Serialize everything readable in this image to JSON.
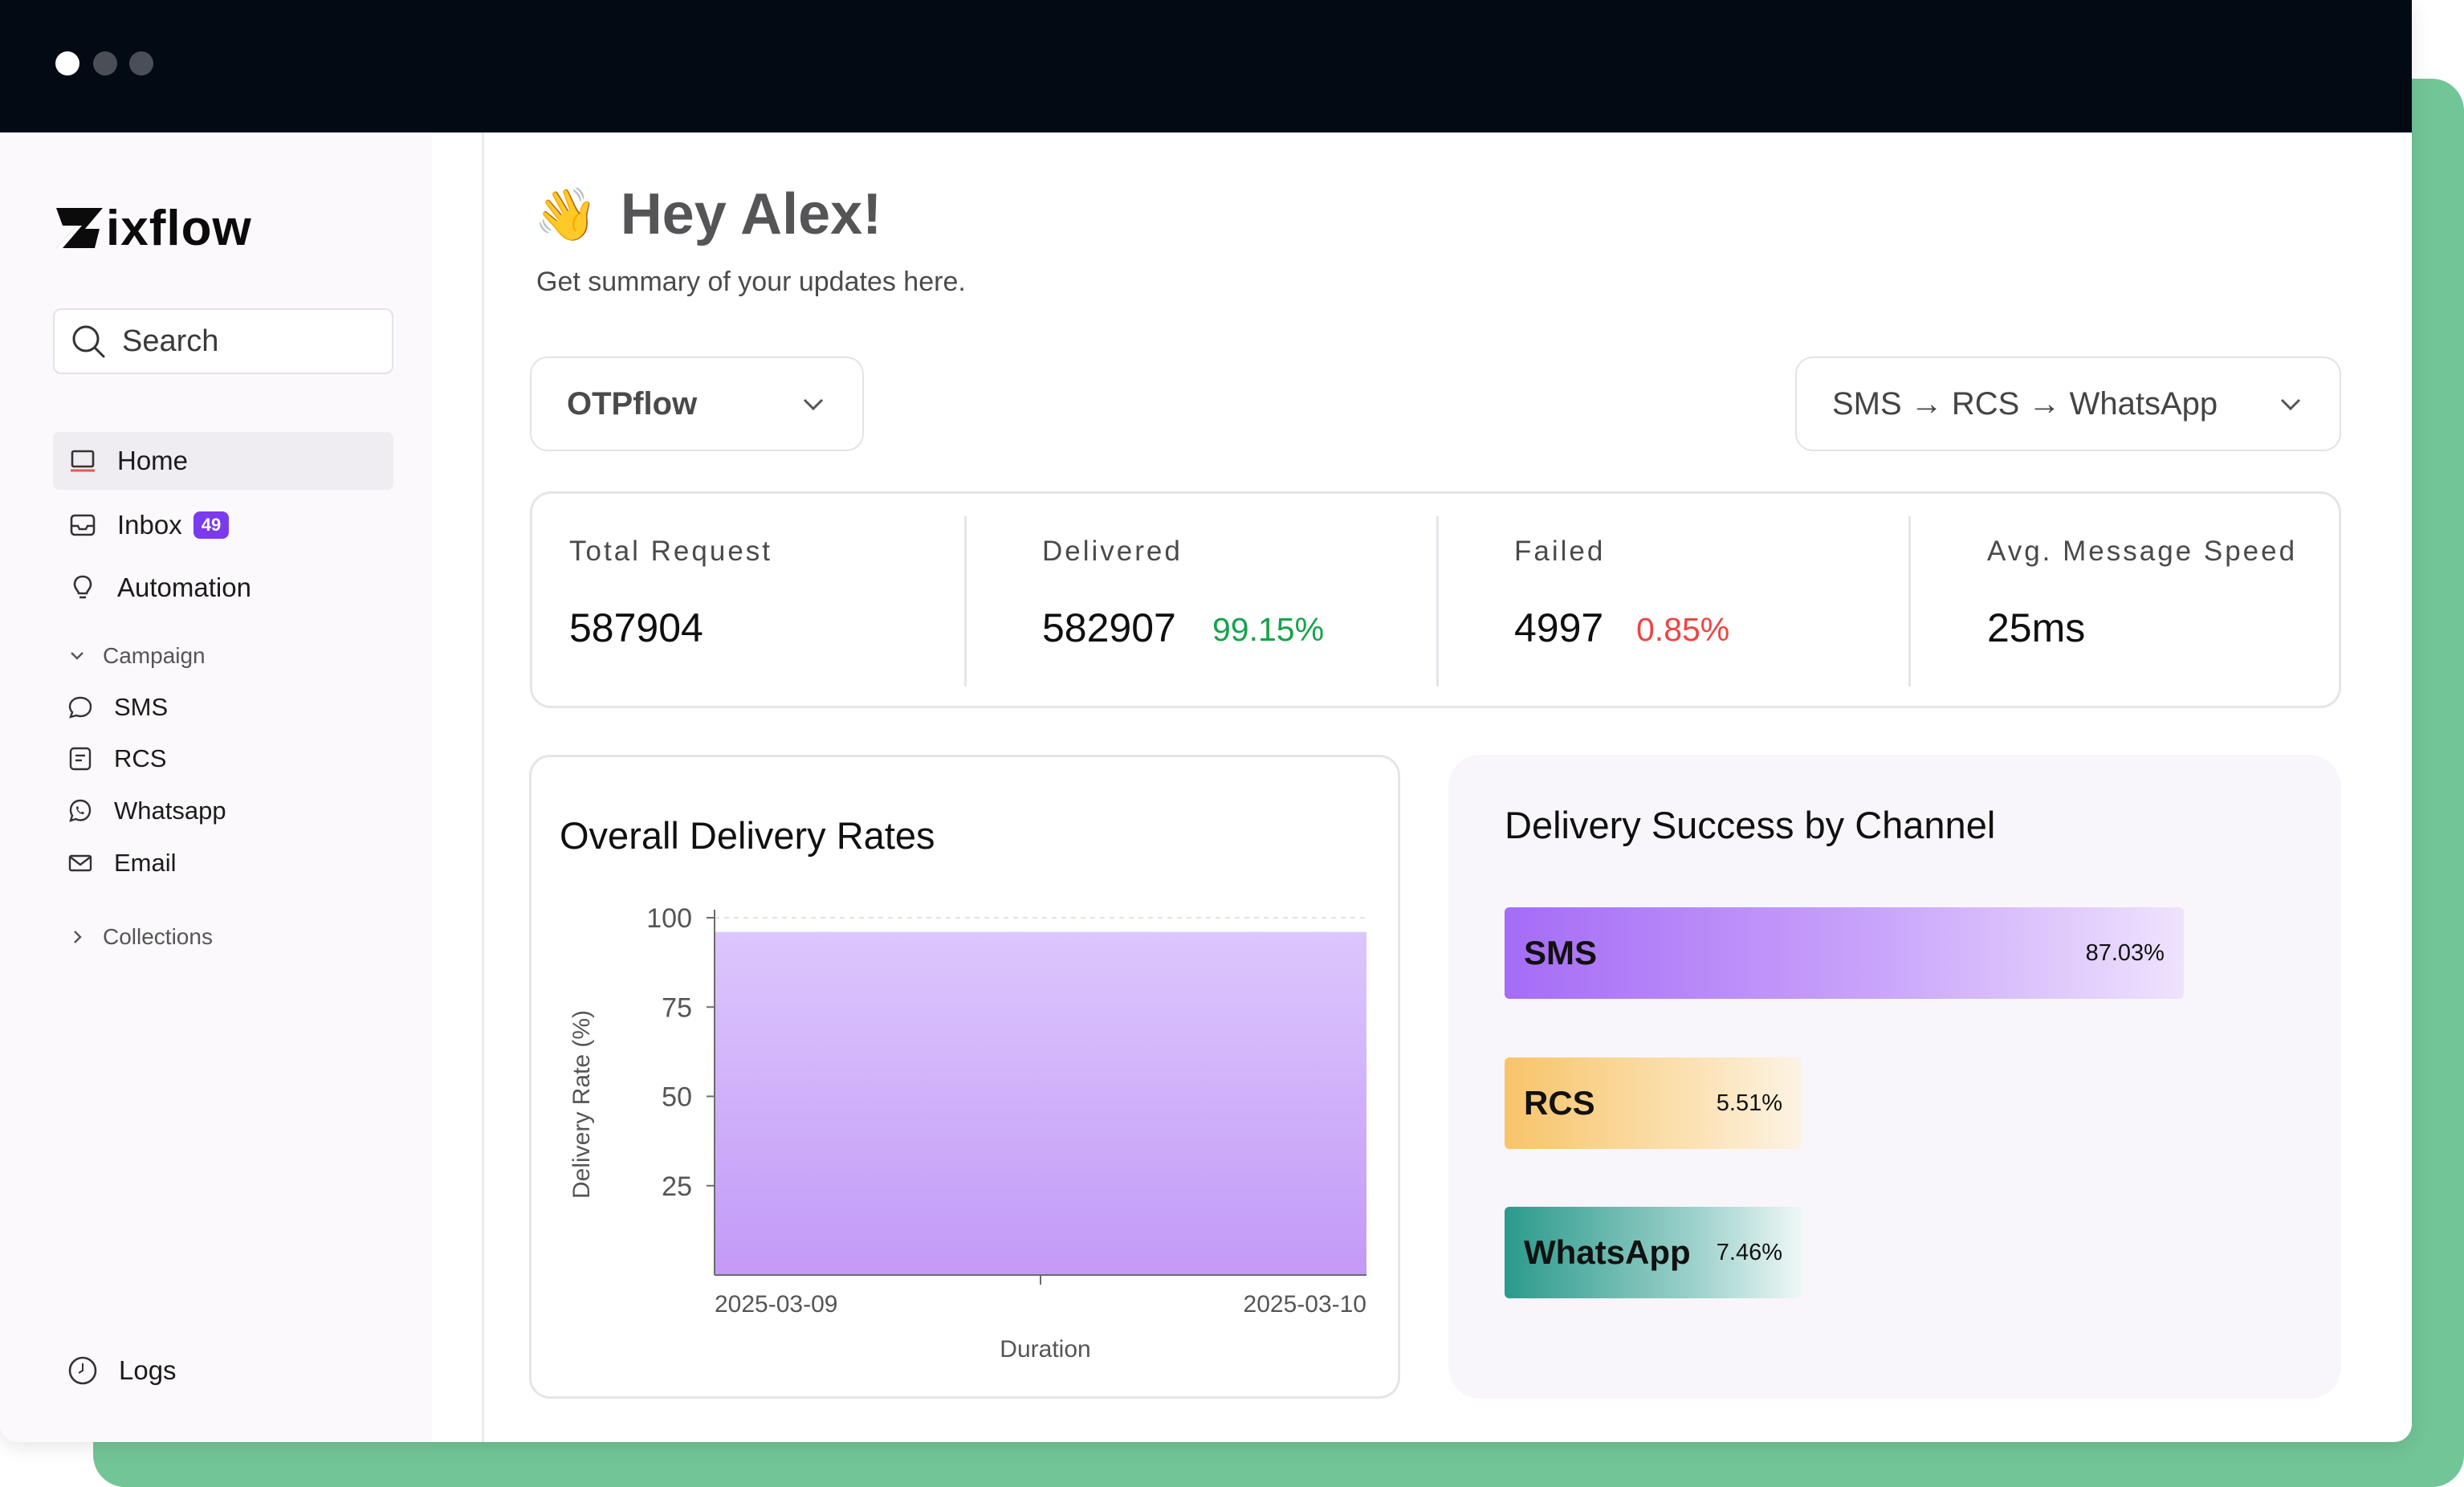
{
  "app": {
    "brand": "ixflow",
    "colors": {
      "accent": "#7c3aed",
      "backdrop": "#72c596",
      "titlebar": "#020a14"
    }
  },
  "sidebar": {
    "search_placeholder": "Search",
    "items": [
      {
        "label": "Home",
        "icon": "laptop-icon",
        "active": true
      },
      {
        "label": "Inbox",
        "icon": "inbox-icon",
        "badge": "49"
      },
      {
        "label": "Automation",
        "icon": "lightbulb-icon"
      }
    ],
    "campaign": {
      "label": "Campaign",
      "items": [
        {
          "label": "SMS",
          "icon": "chat-bubble-icon"
        },
        {
          "label": "RCS",
          "icon": "message-square-icon"
        },
        {
          "label": "Whatsapp",
          "icon": "whatsapp-icon"
        },
        {
          "label": "Email",
          "icon": "mail-icon"
        }
      ]
    },
    "collections": {
      "label": "Collections"
    },
    "logs": {
      "label": "Logs",
      "icon": "clock-icon"
    }
  },
  "main": {
    "greeting": {
      "emoji": "👋",
      "title": "Hey Alex!",
      "subtitle": "Get summary of your updates here."
    },
    "flow_select": "OTPflow",
    "channel_select": "SMS → RCS → WhatsApp",
    "stats": [
      {
        "title": "Total Request",
        "value": "587904",
        "pct": ""
      },
      {
        "title": "Delivered",
        "value": "582907",
        "pct": "99.15%",
        "pct_color": "#16a34a"
      },
      {
        "title": "Failed",
        "value": "4997",
        "pct": "0.85%",
        "pct_color": "#ef4444"
      },
      {
        "title": "Avg. Message Speed",
        "value": "25ms",
        "pct": ""
      }
    ],
    "delivery_card_title": "Overall Delivery Rates",
    "channel_card": {
      "title": "Delivery Success by Channel",
      "bars": [
        {
          "name": "SMS",
          "pct": "87.03%",
          "value": 87.03
        },
        {
          "name": "RCS",
          "pct": "5.51%",
          "value": 5.51
        },
        {
          "name": "WhatsApp",
          "pct": "7.46%",
          "value": 7.46
        }
      ]
    }
  },
  "chart_data": {
    "type": "area",
    "title": "Overall Delivery Rates",
    "xlabel": "Duration",
    "ylabel": "Delivery Rate (%)",
    "x": [
      "2025-03-09",
      "2025-03-10"
    ],
    "series": [
      {
        "values": [
          96,
          96
        ]
      }
    ],
    "ylim": [
      0,
      100
    ],
    "yticks": [
      25,
      50,
      75,
      100
    ],
    "grid": true
  }
}
